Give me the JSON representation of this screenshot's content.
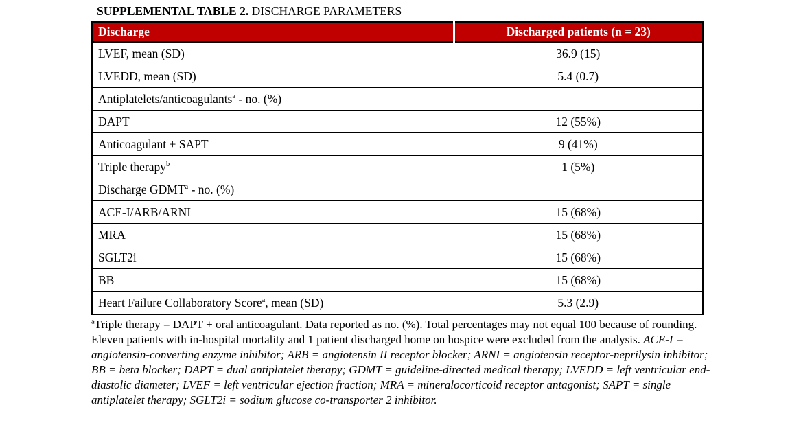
{
  "title": {
    "bold": "SUPPLEMENTAL TABLE 2.",
    "rest": " DISCHARGE PARAMETERS"
  },
  "table": {
    "header": {
      "col1": "Discharge",
      "col2": "Discharged patients (n = 23)"
    },
    "rows": [
      {
        "label": "LVEF, mean (SD)",
        "value": "36.9 (15)"
      },
      {
        "label": "LVEDD, mean (SD)",
        "value": "5.4 (0.7)"
      },
      {
        "label": "Antiplatelets/anticoagulants",
        "sup": "a",
        "suffix": " - no. (%)",
        "value": "",
        "section": true
      },
      {
        "label": "DAPT",
        "value": "12 (55%)",
        "indent": true
      },
      {
        "label": "Anticoagulant + SAPT",
        "value": "9 (41%)",
        "indent": true
      },
      {
        "label": "Triple therapy",
        "sup": "b",
        "value": "1 (5%)",
        "indent": true
      },
      {
        "label": "Discharge GDMT",
        "sup": "a",
        "suffix": " - no. (%)",
        "value": ""
      },
      {
        "label": "ACE-I/ARB/ARNI",
        "value": "15 (68%)",
        "indent": true
      },
      {
        "label": "MRA",
        "value": "15 (68%)",
        "indent": true
      },
      {
        "label": "SGLT2i",
        "value": "15 (68%)",
        "indent": true
      },
      {
        "label": "BB",
        "value": "15 (68%)",
        "indent": true
      },
      {
        "label": "Heart Failure Collaboratory Score",
        "sup": "a",
        "suffix": ", mean (SD)",
        "value": "5.3 (2.9)"
      }
    ]
  },
  "footnote": {
    "marker": "a",
    "text_roman": "Triple therapy = DAPT + oral anticoagulant. Data reported as no. (%). Total percentages may not equal 100 because of rounding. Eleven patients with in-hospital mortality and 1 patient discharged home on hospice were excluded from the analysis. ",
    "text_italic": "ACE-I = angiotensin-converting enzyme inhibitor; ARB = angiotensin II receptor blocker; ARNI = angiotensin receptor-neprilysin inhibitor; BB = beta blocker; DAPT = dual antiplatelet therapy; GDMT = guideline-directed medical therapy; LVEDD = left ventricular end-diastolic diameter; LVEF = left ventricular ejection fraction; MRA = mineralocorticoid receptor antagonist; SAPT = single antiplatelet therapy; SGLT2i = sodium glucose co-transporter 2 inhibitor."
  },
  "colors": {
    "header_bg": "#c00000",
    "header_text": "#ffffff",
    "border": "#000000"
  }
}
